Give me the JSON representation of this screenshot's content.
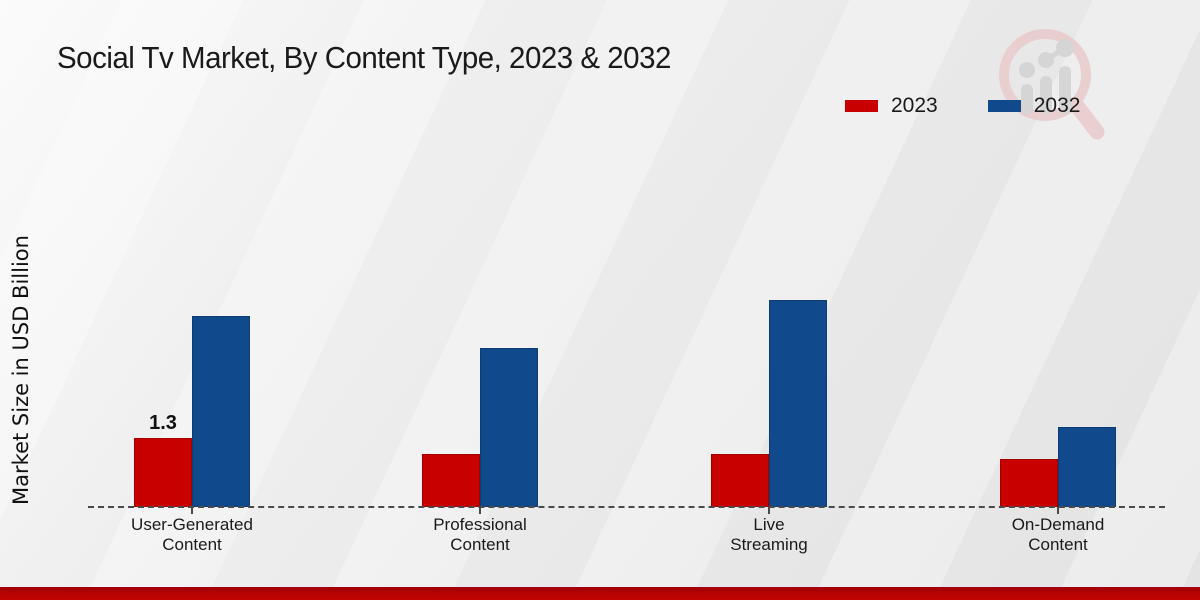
{
  "chart_data": {
    "type": "bar",
    "title": "Social Tv Market, By Content Type, 2023 & 2032",
    "ylabel": "Market Size in USD Billion",
    "xlabel": "",
    "categories": [
      "User-Generated Content",
      "Professional Content",
      "Live Streaming",
      "On-Demand Content"
    ],
    "category_lines": [
      [
        "User-Generated",
        "Content"
      ],
      [
        "Professional",
        "Content"
      ],
      [
        "Live",
        "Streaming"
      ],
      [
        "On-Demand",
        "Content"
      ]
    ],
    "series": [
      {
        "name": "2023",
        "color": "#c80000",
        "values": [
          1.3,
          1.0,
          1.0,
          0.9
        ]
      },
      {
        "name": "2032",
        "color": "#104a8c",
        "values": [
          3.6,
          3.0,
          3.9,
          1.5
        ]
      }
    ],
    "data_labels": [
      {
        "series": "2023",
        "category_index": 0,
        "text": "1.3"
      }
    ],
    "ylim": [
      0,
      4.5
    ],
    "y_axis_visible": false,
    "grid": false,
    "legend_position": "top-right",
    "baseline_style": "dashed"
  },
  "colors": {
    "series_2023": "#c80000",
    "series_2032": "#104a8c",
    "baseline": "#4a4a4a",
    "text": "#1a1a1a",
    "bottom_band": "#b50303",
    "watermark_ring": "#e9caca",
    "watermark_bars": "#d2d2d2"
  }
}
